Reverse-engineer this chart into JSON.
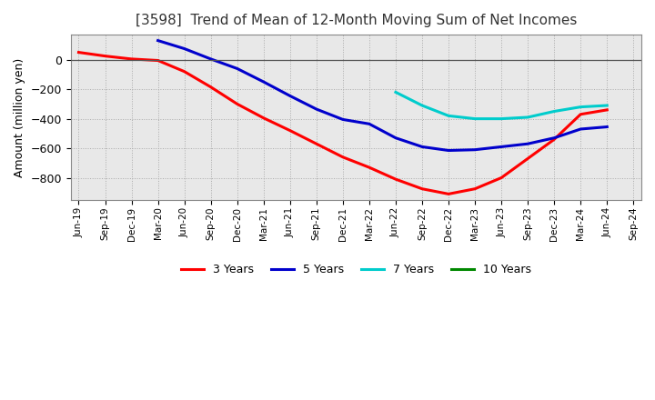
{
  "title": "[3598]  Trend of Mean of 12-Month Moving Sum of Net Incomes",
  "ylabel": "Amount (million yen)",
  "background_color": "#ffffff",
  "plot_bg_color": "#e8e8e8",
  "grid_color": "#aaaaaa",
  "ylim": [
    -950,
    170
  ],
  "yticks": [
    -800,
    -600,
    -400,
    -200,
    0
  ],
  "x_labels": [
    "Jun-19",
    "Sep-19",
    "Dec-19",
    "Mar-20",
    "Jun-20",
    "Sep-20",
    "Dec-20",
    "Mar-21",
    "Jun-21",
    "Sep-21",
    "Dec-21",
    "Mar-22",
    "Jun-22",
    "Sep-22",
    "Dec-22",
    "Mar-23",
    "Jun-23",
    "Sep-23",
    "Dec-23",
    "Mar-24",
    "Jun-24",
    "Sep-24"
  ],
  "series_3y": {
    "label": "3 Years",
    "color": "#ff0000",
    "data": [
      50,
      25,
      5,
      -5,
      -80,
      -185,
      -300,
      -395,
      -480,
      -570,
      -660,
      -730,
      -810,
      -875,
      -910,
      -875,
      -800,
      -670,
      -540,
      -370,
      -340,
      null
    ]
  },
  "series_5y": {
    "label": "5 Years",
    "color": "#0000cc",
    "data": [
      null,
      null,
      null,
      130,
      75,
      5,
      -60,
      -150,
      -245,
      -335,
      -405,
      -435,
      -530,
      -590,
      -615,
      -610,
      -590,
      -570,
      -530,
      -470,
      -455,
      null
    ]
  },
  "series_7y": {
    "label": "7 Years",
    "color": "#00cccc",
    "data": [
      null,
      null,
      null,
      null,
      null,
      null,
      null,
      null,
      null,
      null,
      null,
      null,
      -220,
      -310,
      -380,
      -400,
      -400,
      -390,
      -350,
      -320,
      -310,
      null
    ]
  },
  "series_10y": {
    "label": "10 Years",
    "color": "#008800",
    "data": [
      null,
      null,
      null,
      null,
      null,
      null,
      null,
      null,
      null,
      null,
      null,
      null,
      null,
      null,
      null,
      null,
      null,
      null,
      null,
      null,
      null,
      null
    ]
  },
  "legend_labels": [
    "3 Years",
    "5 Years",
    "7 Years",
    "10 Years"
  ],
  "legend_colors": [
    "#ff0000",
    "#0000cc",
    "#00cccc",
    "#008800"
  ]
}
